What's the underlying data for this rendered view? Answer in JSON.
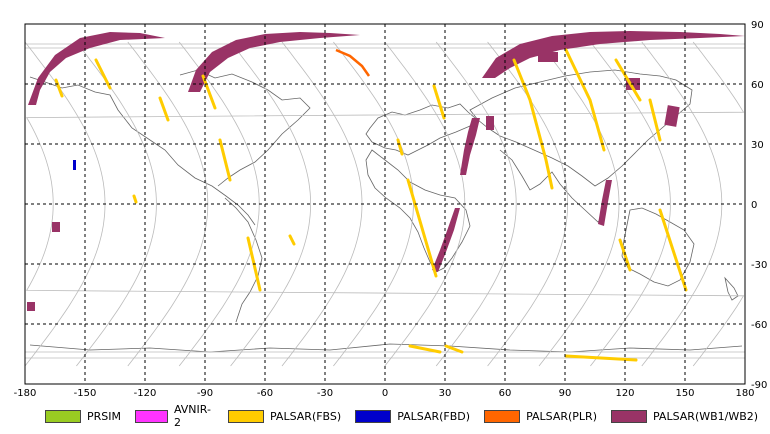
{
  "axes": {
    "x_ticks": [
      "-180",
      "-150",
      "-120",
      "-90",
      "-60",
      "-30",
      "0",
      "30",
      "60",
      "90",
      "120",
      "150",
      "180"
    ],
    "y_ticks": [
      "90",
      "60",
      "30",
      "0",
      "-30",
      "-60",
      "-90"
    ],
    "x_values": [
      -180,
      -150,
      -120,
      -90,
      -60,
      -30,
      0,
      30,
      60,
      90,
      120,
      150,
      180
    ],
    "y_values": [
      90,
      60,
      30,
      0,
      -30,
      -60,
      -90
    ]
  },
  "legend": [
    {
      "label": "PRSIM",
      "color": "#99cc22"
    },
    {
      "label": "AVNIR-2",
      "color": "#ff33ff"
    },
    {
      "label": "PALSAR(FBS)",
      "color": "#ffcc00"
    },
    {
      "label": "PALSAR(FBD)",
      "color": "#0000cc"
    },
    {
      "label": "PALSAR(PLR)",
      "color": "#ff6600"
    },
    {
      "label": "PALSAR(WB1/WB2)",
      "color": "#993366"
    }
  ],
  "colors": {
    "grid": "#000000",
    "orbit": "#bbbbbb",
    "coast": "#666666"
  }
}
